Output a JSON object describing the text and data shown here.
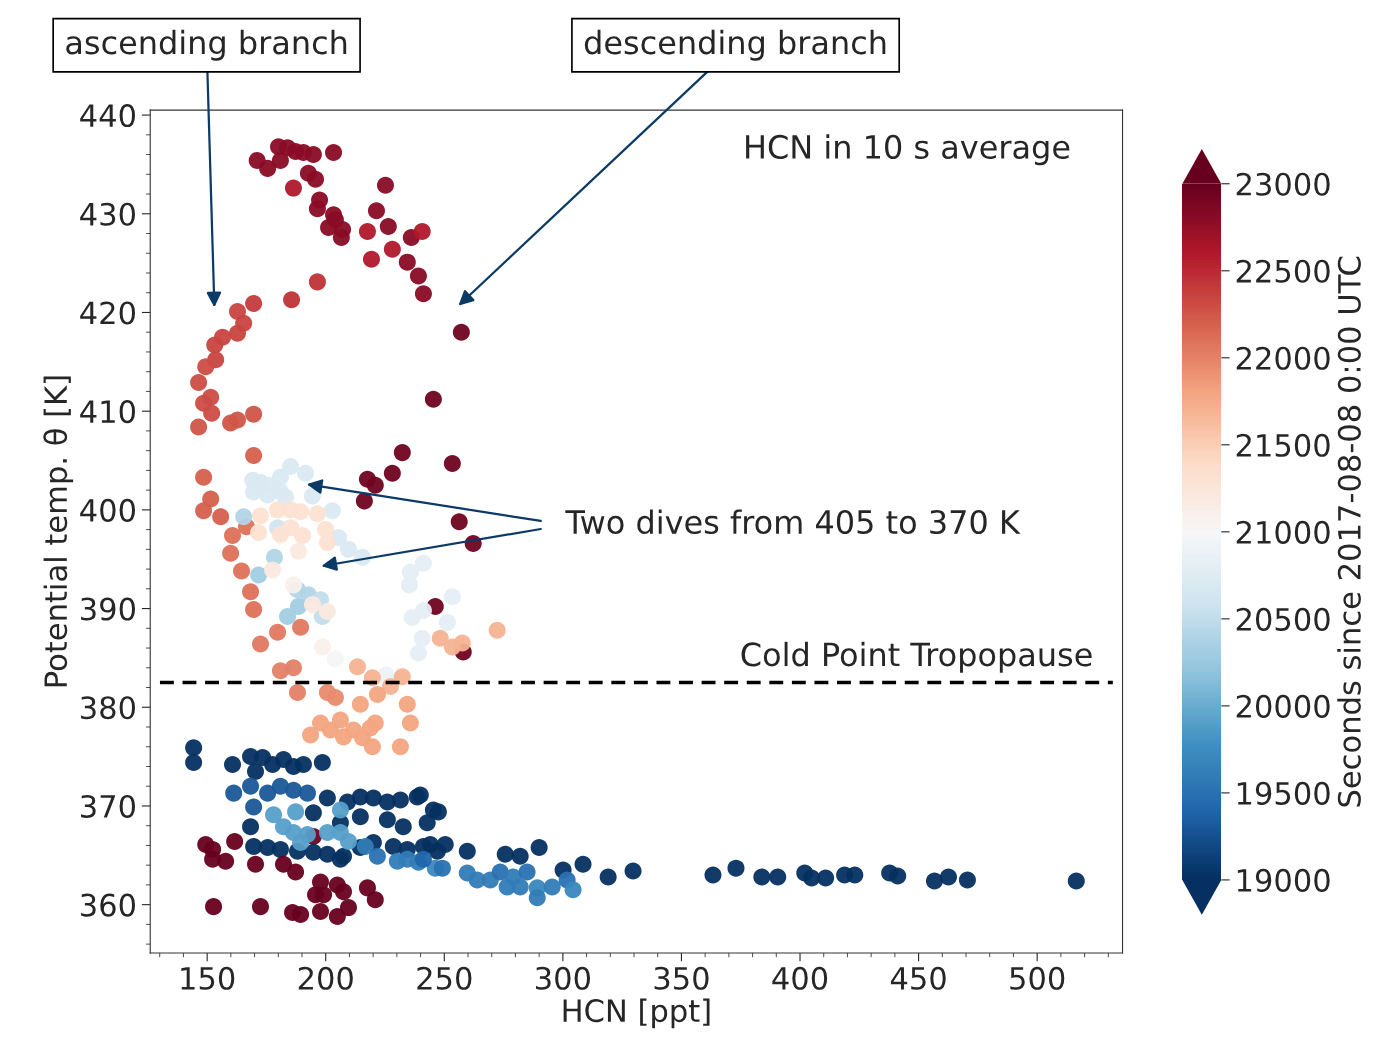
{
  "chart_data": {
    "type": "scatter",
    "xlabel": "HCN [ppt]",
    "ylabel": "Potential temp. θ [K]",
    "clabel": "Seconds since 2017-08-08 0:00 UTC",
    "xlim": [
      126,
      536
    ],
    "ylim": [
      355.1,
      440.5
    ],
    "xticks": [
      150,
      200,
      250,
      300,
      350,
      400,
      450,
      500
    ],
    "yticks": [
      360,
      370,
      380,
      390,
      400,
      410,
      420,
      430,
      440
    ],
    "clim": [
      19000,
      23000
    ],
    "cticks": [
      19000,
      19500,
      20000,
      20500,
      21000,
      21500,
      22000,
      22500,
      23000
    ],
    "grid": false,
    "marker": "circle",
    "ref_lines": [
      {
        "axis": "y",
        "value": 382.5,
        "label": "Cold Point Tropopause",
        "color": "#000000",
        "line_style": "dashed"
      }
    ],
    "annotations": [
      "HCN in 10 s average",
      "ascending branch",
      "descending branch",
      {
        "text": "Two dives from 405 to 370 K",
        "x": 192,
        "y": 402.6
      }
    ],
    "series": [
      {
        "x": [
          171.1,
          175.5,
          180.1,
          180.9,
          183.9,
          187.3,
          190.6,
          194.8,
          203.3,
          192.7,
          195.7,
          186.4,
          197.4,
          196.5,
          203.3,
          204.1,
          201.2,
          207.1,
          206.6,
          225.2,
          221.4,
          217.6,
          226.4,
          228.1,
          219.3,
          236.1,
          240.7,
          234.4,
          239.1,
          241.2,
          257.2,
          245.4,
          232.3,
          253.4,
          217.6,
          220.9,
          228.1,
          216.3,
          256.3,
          262.2,
          246.2,
          258,
          194.8,
          169.6,
          162.8,
          165.4,
          162.8,
          156.5,
          153.2,
          153.6,
          149.4,
          146.4,
          151.5,
          148.5,
          151.9,
          159.9,
          162.8,
          169.6,
          146.4,
          196.5,
          185.6,
          169.6,
          148.5,
          151.5,
          148.5,
          155.7,
          166.6,
          160.7,
          159.9,
          164.5,
          168.3,
          169.6,
          179.7,
          172.5,
          189.4,
          180.9,
          186.4,
          188.1,
          200.7,
          204.1,
          169.2,
          172.5,
          175.9,
          180.9,
          185.2,
          191.5,
          169.6,
          175.5,
          180.9,
          183.1,
          194.4,
          165.4,
          179.7,
          202.8,
          205.4,
          209.6,
          215.5,
          178.4,
          171.7,
          188.1,
          192.7,
          197.8,
          188.5,
          183.9,
          198.6,
          241.2,
          235.7,
          235.3,
          253.4,
          251.3,
          236.5,
          241.2,
          240.7,
          239.1,
          225.6,
          172.5,
          179.7,
          185.2,
          189.4,
          196.5,
          171.7,
          180.9,
          185.2,
          190.2,
          199.9,
          200.7,
          188.5,
          177.6,
          186.4,
          194.4,
          200.7,
          198.6,
          204.1,
          272.3,
          248.3,
          253.4,
          257.6,
          213.4,
          219.7,
          232.3,
          227.3,
          221.8,
          234.4,
          214.6,
          193.6,
          197.8,
          202,
          206.2,
          207.5,
          211.7,
          215.5,
          218.8,
          220.9,
          219.7,
          235.7,
          231.5,
          144.3,
          144.3,
          160.7,
          168.3,
          173.4,
          177.6,
          182.2,
          186.4,
          190.6,
          198.6,
          170.4,
          200.7,
          209.2,
          214.6,
          220.1,
          226,
          231.5,
          238.6,
          245.4,
          194.8,
          206.2,
          226,
          232.7,
          242.8,
          214.6,
          161.2,
          169.6,
          168.3,
          175.5,
          180.9,
          186.4,
          192.3,
          169.6,
          175.5,
          180.9,
          188.1,
          194.8,
          200.7,
          207.5,
          214.6,
          220.1,
          228.5,
          234.4,
          241.2,
          247.1,
          206.2,
          168.3,
          178,
          187.3,
          206.2,
          182.2,
          186.4,
          192.3,
          200.7,
          206.2,
          209.6,
          189.4,
          216.7,
          221.8,
          230.2,
          234.4,
          239.1,
          246.2,
          149.4,
          152.3,
          152.3,
          157.8,
          161.6,
          170.4,
          182.2,
          187.3,
          197.8,
          204.9,
          207.5,
          195.7,
          199.1,
          217.6,
          220.9,
          152.7,
          172.5,
          186,
          189.4,
          197.8,
          204.9,
          209.6,
          239.9,
          247.5,
          244.1,
          250.4,
          259.7,
          275.7,
          282,
          290,
          300.1,
          308.5,
          319.1,
          241.2,
          249.2,
          259.7,
          263.9,
          269.4,
          273.6,
          279.1,
          284.9,
          276.5,
          282,
          289.2,
          295.5,
          301.8,
          304.3,
          289.2,
          329.6,
          363.3,
          373,
          383.9,
          390.6,
          402,
          404.9,
          410.8,
          418.8,
          423.1,
          437.8,
          441.2,
          456.7,
          462.6,
          470.6,
          516.5
        ],
        "values": [
          435.4,
          434.6,
          436.8,
          435.4,
          436.7,
          436.3,
          436.2,
          436.0,
          436.2,
          434.1,
          433.5,
          432.6,
          431.4,
          430.5,
          429.9,
          429.4,
          428.6,
          428.4,
          427.6,
          432.9,
          430.3,
          428.2,
          428.7,
          426.4,
          425.4,
          427.6,
          428.2,
          425.1,
          423.7,
          421.9,
          418.0,
          411.2,
          405.8,
          404.7,
          403.1,
          402.5,
          403.7,
          400.9,
          398.8,
          396.6,
          390.2,
          385.6,
          366.9,
          420.9,
          420.1,
          418.9,
          417.9,
          417.5,
          416.7,
          415.2,
          414.5,
          412.9,
          411.4,
          410.8,
          409.8,
          408.8,
          409.1,
          409.7,
          408.4,
          423.1,
          421.3,
          405.5,
          403.3,
          401.1,
          399.9,
          399.3,
          398.3,
          397.4,
          395.6,
          393.8,
          391.7,
          389.9,
          387.6,
          386.4,
          388.1,
          383.7,
          384.0,
          381.5,
          381.5,
          381.0,
          403.0,
          402.8,
          402.5,
          403.3,
          404.4,
          403.7,
          401.8,
          401.5,
          401.8,
          401.3,
          401.4,
          399.3,
          398.2,
          399.9,
          397.2,
          396.0,
          395.2,
          395.2,
          393.4,
          391.9,
          391.4,
          390.9,
          390.2,
          389.2,
          389.2,
          394.6,
          393.7,
          392.4,
          391.2,
          388.6,
          389.1,
          389.8,
          387.0,
          385.5,
          383.3,
          399.4,
          400.0,
          400.0,
          399.8,
          399.6,
          397.7,
          397.5,
          398.2,
          397.4,
          398.0,
          396.7,
          395.8,
          393.9,
          392.4,
          390.4,
          389.7,
          386.1,
          384.9,
          387.8,
          387.0,
          386.1,
          386.5,
          384.1,
          383.0,
          383.1,
          382.1,
          381.3,
          380.3,
          380.3,
          377.2,
          378.4,
          377.7,
          378.7,
          377.0,
          377.7,
          376.9,
          377.9,
          378.4,
          376.0,
          378.4,
          376.0,
          375.9,
          374.4,
          374.2,
          375.0,
          374.9,
          374.2,
          374.7,
          374.0,
          374.2,
          374.4,
          373.5,
          370.8,
          370.4,
          370.9,
          370.8,
          370.4,
          370.6,
          370.9,
          369.6,
          369.3,
          368.3,
          368.6,
          367.9,
          368.3,
          368.9,
          371.3,
          369.9,
          372.0,
          371.3,
          372.0,
          371.6,
          371.3,
          365.9,
          365.8,
          365.6,
          365.4,
          365.3,
          365.1,
          364.9,
          365.8,
          366.3,
          365.9,
          365.6,
          365.9,
          365.4,
          364.6,
          367.9,
          369.1,
          369.4,
          369.6,
          367.9,
          367.3,
          367.1,
          367.3,
          367.3,
          366.4,
          366.3,
          365.9,
          364.9,
          364.4,
          364.6,
          364.3,
          363.7,
          366.1,
          365.6,
          364.6,
          364.4,
          366.4,
          364.1,
          364.1,
          363.3,
          362.3,
          362.0,
          361.3,
          361.0,
          361.0,
          361.7,
          360.5,
          359.8,
          359.8,
          359.2,
          359.0,
          359.3,
          358.8,
          359.7,
          371.1,
          369.4,
          366.1,
          366.1,
          365.4,
          365.1,
          364.9,
          365.8,
          363.5,
          364.1,
          362.8,
          364.6,
          363.7,
          363.2,
          362.5,
          362.5,
          363.3,
          362.8,
          363.3,
          361.8,
          361.8,
          361.7,
          361.8,
          362.5,
          361.5,
          360.7,
          363.4,
          363.0,
          363.7,
          362.8,
          362.8,
          363.2,
          362.7,
          362.7,
          363.0,
          363.0,
          363.2,
          362.9,
          362.4,
          362.8,
          362.5,
          362.4
        ],
        "cvalues": [
          22800,
          22800,
          22800,
          22800,
          22800,
          22800,
          22800,
          22800,
          22800,
          22800,
          22800,
          22600,
          22800,
          22800,
          22800,
          22800,
          22800,
          22800,
          22800,
          22800,
          22800,
          22600,
          22800,
          22600,
          22600,
          22800,
          22600,
          22800,
          22800,
          22800,
          22950,
          22950,
          22950,
          22950,
          22950,
          22950,
          22950,
          22950,
          22950,
          22950,
          22950,
          22950,
          22950,
          22400,
          22350,
          22350,
          22350,
          22350,
          22350,
          22350,
          22300,
          22300,
          22300,
          22300,
          22300,
          22250,
          22250,
          22250,
          22250,
          22450,
          22450,
          22200,
          22200,
          22200,
          22200,
          22200,
          22100,
          22100,
          22100,
          22100,
          22100,
          22100,
          22050,
          22050,
          22050,
          22000,
          22000,
          22000,
          21950,
          21950,
          20700,
          20700,
          20700,
          20700,
          20700,
          20700,
          20700,
          20700,
          20700,
          20700,
          20700,
          20400,
          20600,
          20700,
          20700,
          20700,
          20700,
          20400,
          20300,
          20400,
          20400,
          20500,
          20300,
          20300,
          20500,
          20800,
          20800,
          20800,
          20800,
          20800,
          20800,
          20800,
          20800,
          20800,
          20900,
          21300,
          21300,
          21300,
          21300,
          21300,
          21300,
          21300,
          21300,
          21300,
          21300,
          21300,
          21200,
          21200,
          21100,
          21200,
          21200,
          21100,
          21000,
          21700,
          21700,
          21700,
          21700,
          21700,
          21700,
          21700,
          21700,
          21800,
          21800,
          21800,
          21800,
          21800,
          21800,
          21800,
          21800,
          21800,
          21800,
          21800,
          21800,
          21800,
          21800,
          21800,
          19000,
          19000,
          19000,
          19000,
          19000,
          19000,
          19000,
          19000,
          19000,
          19000,
          19000,
          19000,
          19000,
          19000,
          19000,
          19000,
          19000,
          19000,
          19000,
          19000,
          19000,
          19000,
          19000,
          19000,
          19000,
          19300,
          19300,
          19300,
          19300,
          19300,
          19300,
          19300,
          19000,
          19000,
          19000,
          19000,
          19000,
          19000,
          19000,
          19000,
          19000,
          19000,
          19000,
          19000,
          19000,
          19000,
          19000,
          19900,
          19900,
          19900,
          19900,
          19900,
          19900,
          19900,
          19900,
          19900,
          19900,
          19600,
          19500,
          19600,
          19600,
          19600,
          19700,
          23000,
          23000,
          23000,
          23000,
          23000,
          23000,
          23000,
          23000,
          23000,
          23000,
          23000,
          23000,
          23000,
          23000,
          23000,
          23000,
          23000,
          23000,
          23000,
          23000,
          23000,
          23000,
          19000,
          19000,
          19000,
          19000,
          19000,
          19000,
          19000,
          19000,
          19000,
          19000,
          19000,
          19400,
          19500,
          19600,
          19600,
          19600,
          19500,
          19600,
          19500,
          19600,
          19600,
          19700,
          19600,
          19500,
          19700,
          19600,
          19000,
          19000,
          19000,
          19000,
          19000,
          19000,
          19000,
          19000,
          19000,
          19000,
          19000,
          19000,
          19000,
          19000,
          19000,
          19000
        ]
      }
    ]
  }
}
